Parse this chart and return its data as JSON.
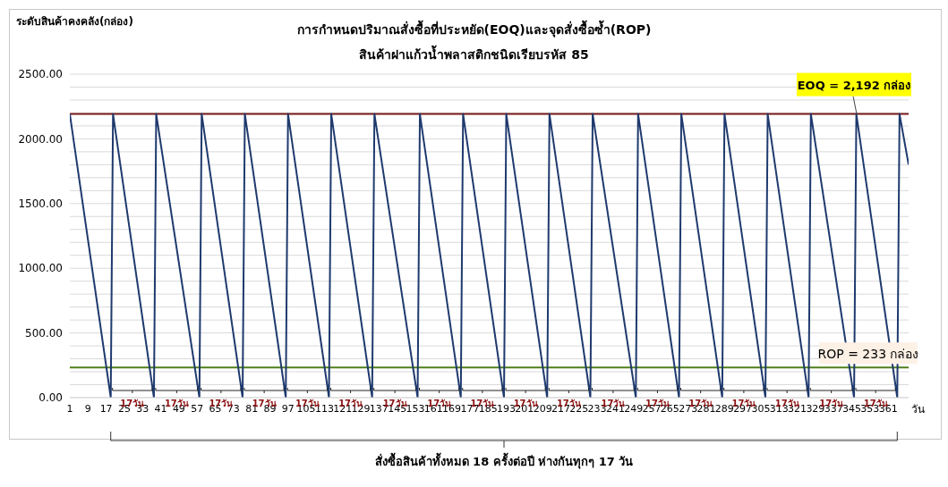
{
  "chart_data": {
    "type": "line",
    "title": "การกำหนดปริมาณสั่งซื้อที่ประหยัด(EOQ)และจุดสั่งซื้อซ้ำ(ROP)",
    "subtitle": "สินค้าฝาแก้วน้ำพลาสติกชนิดเรียบรหัส 85",
    "ylabel": "ระดับสินค้าคงคลัง(กล่อง)",
    "xlabel": "วัน",
    "series": [
      {
        "color": "#1f3a6e",
        "x": [
          1,
          19,
          20,
          38,
          39,
          58,
          59,
          77,
          78,
          96,
          97,
          115,
          116,
          134,
          135,
          154,
          155,
          173,
          174,
          192,
          193,
          211,
          212,
          230,
          231,
          250,
          251,
          269,
          270,
          288,
          289,
          307,
          308,
          326,
          327,
          346,
          347,
          365,
          366,
          370
        ],
        "values": [
          2192,
          0,
          2192,
          0,
          2192,
          0,
          2192,
          0,
          2192,
          0,
          2192,
          0,
          2192,
          0,
          2192,
          0,
          2192,
          0,
          2192,
          0,
          2192,
          0,
          2192,
          0,
          2192,
          0,
          2192,
          0,
          2192,
          0,
          2192,
          0,
          2192,
          0,
          2192,
          0,
          2192,
          0,
          2192,
          1800
        ]
      }
    ],
    "xlim": [
      1,
      370
    ],
    "xticks": [
      1,
      9,
      17,
      25,
      33,
      41,
      49,
      57,
      65,
      73,
      81,
      89,
      97,
      105,
      113,
      121,
      129,
      137,
      145,
      153,
      161,
      169,
      177,
      185,
      193,
      201,
      209,
      217,
      225,
      233,
      241,
      249,
      257,
      265,
      273,
      281,
      289,
      297,
      305,
      313,
      321,
      329,
      337,
      345,
      353,
      361
    ],
    "ylim": [
      0,
      2500
    ],
    "yticks": [
      {
        "value": 0,
        "label": "0.00"
      },
      {
        "value": 100,
        "label": null
      },
      {
        "value": 200,
        "label": null
      },
      {
        "value": 300,
        "label": null
      },
      {
        "value": 400,
        "label": null
      },
      {
        "value": 500,
        "label": "500.00"
      },
      {
        "value": 600,
        "label": null
      },
      {
        "value": 700,
        "label": null
      },
      {
        "value": 800,
        "label": null
      },
      {
        "value": 900,
        "label": null
      },
      {
        "value": 1000,
        "label": "1000.00"
      },
      {
        "value": 1100,
        "label": null
      },
      {
        "value": 1200,
        "label": null
      },
      {
        "value": 1300,
        "label": null
      },
      {
        "value": 1400,
        "label": null
      },
      {
        "value": 1500,
        "label": "1500.00"
      },
      {
        "value": 1600,
        "label": null
      },
      {
        "value": 1700,
        "label": null
      },
      {
        "value": 1800,
        "label": null
      },
      {
        "value": 1900,
        "label": null
      },
      {
        "value": 2000,
        "label": "2000.00"
      },
      {
        "value": 2100,
        "label": null
      },
      {
        "value": 2200,
        "label": null
      },
      {
        "value": 2300,
        "label": null
      },
      {
        "value": 2400,
        "label": null
      },
      {
        "value": 2500,
        "label": "2500.00"
      }
    ],
    "grid": "y",
    "ref_lines": [
      {
        "axis": "y",
        "value": 2192,
        "label": "EOQ = 2,192 กล่อง",
        "color": "#7b1c1c"
      },
      {
        "axis": "y",
        "value": 233,
        "label": "ROP = 233 กล่อง",
        "color": "#4f7f1a"
      }
    ],
    "annotations": [
      "17วัน",
      "17วัน",
      "17วัน",
      "17วัน",
      "17วัน",
      "17วัน",
      "17วัน",
      "17วัน",
      "17วัน",
      "17วัน",
      "17วัน",
      "17วัน",
      "17วัน",
      "17วัน",
      "17วัน",
      "17วัน",
      "17วัน",
      "17วัน",
      "สั่งซื้อสินค้าทั้งหมด 18 ครั้งต่อปี ห่างกันทุกๆ 17 วัน"
    ]
  }
}
